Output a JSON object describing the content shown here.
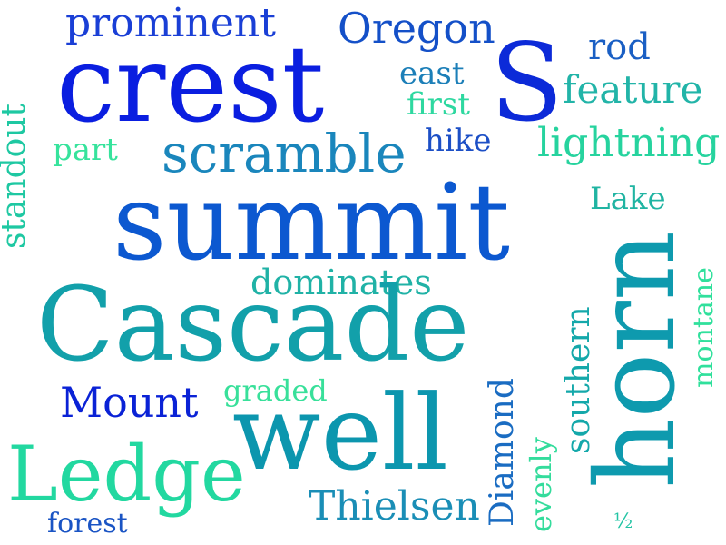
{
  "words": {
    "prominent": {
      "text": "prominent",
      "color": "#1a3fd6"
    },
    "oregon": {
      "text": "Oregon",
      "color": "#1450c8"
    },
    "rod": {
      "text": "rod",
      "color": "#1a5fc4"
    },
    "crest": {
      "text": "crest",
      "color": "#0a1ee0"
    },
    "s": {
      "text": "S",
      "color": "#0c2ad8"
    },
    "east": {
      "text": "east",
      "color": "#1c7fb8"
    },
    "feature": {
      "text": "feature",
      "color": "#22b4a8"
    },
    "first": {
      "text": "first",
      "color": "#2ed8a0"
    },
    "standout": {
      "text": "standout",
      "color": "#1ec8a2"
    },
    "part": {
      "text": "part",
      "color": "#36e39c"
    },
    "scramble": {
      "text": "scramble",
      "color": "#1a86bc"
    },
    "hike": {
      "text": "hike",
      "color": "#1c4fc6"
    },
    "lightning": {
      "text": "lightning",
      "color": "#26d39e"
    },
    "summit": {
      "text": "summit",
      "color": "#0c58d0"
    },
    "lake": {
      "text": "Lake",
      "color": "#20b4a2"
    },
    "horn": {
      "text": "horn",
      "color": "#0e9aae"
    },
    "montane": {
      "text": "montane",
      "color": "#30e09c"
    },
    "dominates": {
      "text": "dominates",
      "color": "#20b2a6"
    },
    "cascade": {
      "text": "Cascade",
      "color": "#12a0aa"
    },
    "southern": {
      "text": "southern",
      "color": "#14a8aa"
    },
    "mount": {
      "text": "Mount",
      "color": "#0a22d6"
    },
    "graded": {
      "text": "graded",
      "color": "#38e09a"
    },
    "diamond": {
      "text": "Diamond",
      "color": "#1a6cc2"
    },
    "well": {
      "text": "well",
      "color": "#0c96ae"
    },
    "ledge": {
      "text": "Ledge",
      "color": "#22d8a0"
    },
    "evenly": {
      "text": "evenly",
      "color": "#34dc9c"
    },
    "thielsen": {
      "text": "Thielsen",
      "color": "#1a8eb6"
    },
    "forest": {
      "text": "forest",
      "color": "#1a54c4"
    },
    "half": {
      "text": "½",
      "color": "#22c4a4"
    }
  }
}
